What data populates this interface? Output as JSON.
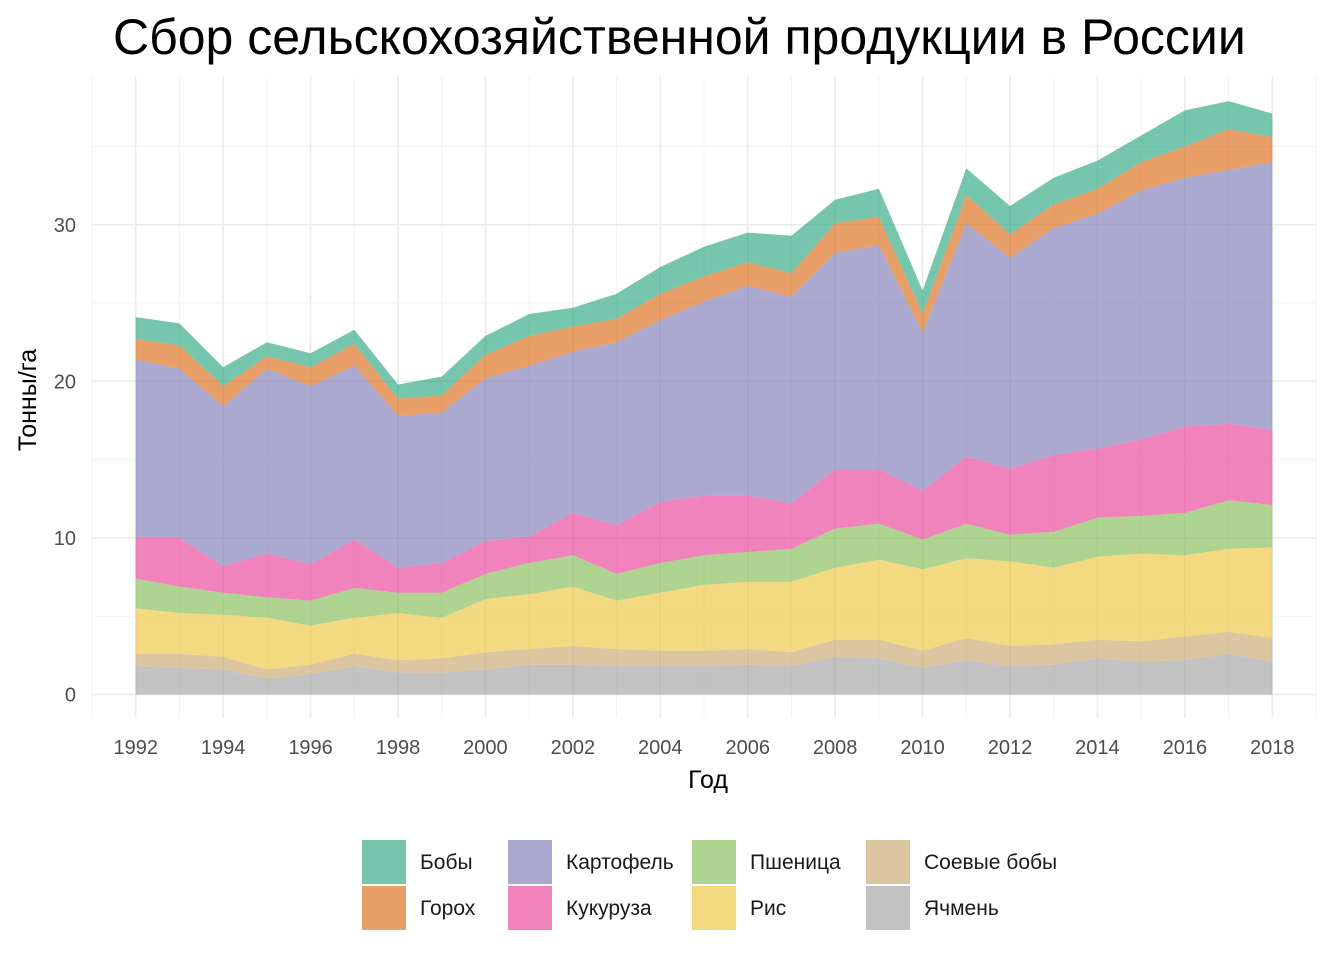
{
  "chart_data": {
    "type": "area",
    "stacked": true,
    "title": "Сбор сельскохозяйственной продукции в России",
    "xlabel": "Год",
    "ylabel": "Тонны/га",
    "xlim": [
      1991,
      2019
    ],
    "ylim": [
      -1.5,
      39.5
    ],
    "x_ticks": [
      1992,
      1994,
      1996,
      1998,
      2000,
      2002,
      2004,
      2006,
      2008,
      2010,
      2012,
      2014,
      2016,
      2018
    ],
    "y_ticks": [
      0,
      10,
      20,
      30
    ],
    "grid": true,
    "legend_position": "bottom",
    "x": [
      1992,
      1993,
      1994,
      1995,
      1996,
      1997,
      1998,
      1999,
      2000,
      2001,
      2002,
      2003,
      2004,
      2005,
      2006,
      2007,
      2008,
      2009,
      2010,
      2011,
      2012,
      2013,
      2014,
      2015,
      2016,
      2017,
      2018
    ],
    "series": [
      {
        "name": "Ячмень",
        "color": "#999999",
        "values": [
          1.8,
          1.7,
          1.6,
          1.0,
          1.3,
          1.8,
          1.4,
          1.4,
          1.6,
          1.9,
          1.9,
          1.8,
          1.8,
          1.8,
          1.9,
          1.8,
          2.4,
          2.3,
          1.7,
          2.2,
          1.8,
          1.9,
          2.3,
          2.1,
          2.2,
          2.6,
          2.1
        ]
      },
      {
        "name": "Соевые бобы",
        "color": "#c3a062",
        "values": [
          0.8,
          0.9,
          0.8,
          0.6,
          0.6,
          0.8,
          0.8,
          0.9,
          1.1,
          1.0,
          1.2,
          1.1,
          1.0,
          1.0,
          1.0,
          0.9,
          1.1,
          1.2,
          1.1,
          1.4,
          1.3,
          1.3,
          1.2,
          1.3,
          1.5,
          1.4,
          1.5
        ]
      },
      {
        "name": "Рис",
        "color": "#ebc02a",
        "values": [
          2.9,
          2.6,
          2.7,
          3.3,
          2.5,
          2.3,
          3.0,
          2.6,
          3.4,
          3.5,
          3.8,
          3.1,
          3.7,
          4.2,
          4.3,
          4.5,
          4.6,
          5.1,
          5.2,
          5.1,
          5.4,
          4.9,
          5.3,
          5.6,
          5.2,
          5.3,
          5.8
        ]
      },
      {
        "name": "Пшеница",
        "color": "#7ab648",
        "values": [
          1.9,
          1.7,
          1.4,
          1.3,
          1.6,
          1.9,
          1.3,
          1.6,
          1.6,
          2.0,
          2.0,
          1.7,
          1.9,
          1.9,
          1.9,
          2.1,
          2.5,
          2.3,
          1.9,
          2.2,
          1.7,
          2.3,
          2.5,
          2.4,
          2.7,
          3.1,
          2.7
        ]
      },
      {
        "name": "Кукуруза",
        "color": "#e6318f",
        "values": [
          2.6,
          3.1,
          1.7,
          2.8,
          2.3,
          3.1,
          1.6,
          1.9,
          2.1,
          1.7,
          2.7,
          3.1,
          3.9,
          3.8,
          3.6,
          2.9,
          3.8,
          3.5,
          3.1,
          4.3,
          4.2,
          4.9,
          4.4,
          4.9,
          5.5,
          4.9,
          4.8
        ]
      },
      {
        "name": "Картофель",
        "color": "#7570b3",
        "values": [
          11.4,
          10.8,
          10.2,
          11.8,
          11.4,
          11.1,
          9.7,
          9.6,
          10.4,
          10.9,
          10.3,
          11.7,
          11.6,
          12.4,
          13.4,
          13.2,
          13.8,
          14.3,
          10.1,
          14.9,
          13.5,
          14.5,
          15.0,
          15.9,
          15.9,
          16.2,
          17.1
        ]
      },
      {
        "name": "Горох",
        "color": "#d95f02",
        "values": [
          1.3,
          1.5,
          1.3,
          0.8,
          1.2,
          1.4,
          1.1,
          1.1,
          1.5,
          1.9,
          1.6,
          1.5,
          1.7,
          1.6,
          1.5,
          1.5,
          1.9,
          1.8,
          1.2,
          1.8,
          1.5,
          1.5,
          1.6,
          1.8,
          2.0,
          2.6,
          1.6
        ]
      },
      {
        "name": "Бобы",
        "color": "#1b9e77",
        "values": [
          1.4,
          1.4,
          1.2,
          0.9,
          0.9,
          0.9,
          0.9,
          1.2,
          1.2,
          1.4,
          1.2,
          1.6,
          1.7,
          1.9,
          1.9,
          2.4,
          1.5,
          1.8,
          1.5,
          1.7,
          1.8,
          1.7,
          1.8,
          1.7,
          2.3,
          1.8,
          1.5
        ]
      }
    ],
    "legend_order": [
      "Бобы",
      "Горох",
      "Картофель",
      "Кукуруза",
      "Пшеница",
      "Рис",
      "Соевые бобы",
      "Ячмень"
    ]
  }
}
